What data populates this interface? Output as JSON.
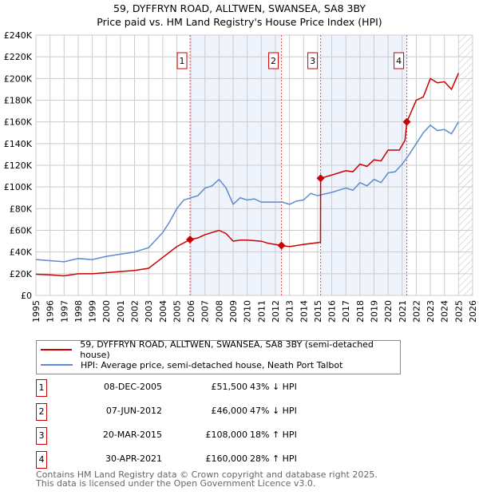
{
  "chart_data": {
    "type": "line",
    "title": "59, DYFFRYN ROAD, ALLTWEN, SWANSEA, SA8 3BY",
    "subtitle": "Price paid vs. HM Land Registry's House Price Index (HPI)",
    "xlim": [
      1995,
      2026
    ],
    "ylim": [
      0,
      240000
    ],
    "x_ticks": [
      "1995",
      "1996",
      "1997",
      "1998",
      "1999",
      "2000",
      "2001",
      "2002",
      "2003",
      "2004",
      "2005",
      "2006",
      "2007",
      "2008",
      "2009",
      "2010",
      "2011",
      "2012",
      "2013",
      "2014",
      "2015",
      "2016",
      "2017",
      "2018",
      "2019",
      "2020",
      "2021",
      "2022",
      "2023",
      "2024",
      "2025",
      "2026"
    ],
    "y_ticks": [
      {
        "v": 0,
        "label": "£0"
      },
      {
        "v": 20000,
        "label": "£20K"
      },
      {
        "v": 40000,
        "label": "£40K"
      },
      {
        "v": 60000,
        "label": "£60K"
      },
      {
        "v": 80000,
        "label": "£80K"
      },
      {
        "v": 100000,
        "label": "£100K"
      },
      {
        "v": 120000,
        "label": "£120K"
      },
      {
        "v": 140000,
        "label": "£140K"
      },
      {
        "v": 160000,
        "label": "£160K"
      },
      {
        "v": 180000,
        "label": "£180K"
      },
      {
        "v": 200000,
        "label": "£200K"
      },
      {
        "v": 220000,
        "label": "£220K"
      },
      {
        "v": 240000,
        "label": "£240K"
      }
    ],
    "grid": true,
    "shaded_ranges": [
      [
        2005.94,
        2012.43
      ],
      [
        2015.21,
        2021.33
      ]
    ],
    "hatched_from": 2025.0,
    "series": [
      {
        "name": "59, DYFFRYN ROAD, ALLTWEN, SWANSEA, SA8 3BY (semi-detached house)",
        "color": "#cc0000",
        "x": [
          1995,
          1996,
          1997,
          1998,
          1999,
          2000,
          2001,
          2002,
          2003,
          2004,
          2005,
          2005.94,
          2006.5,
          2007,
          2008,
          2008.5,
          2009,
          2009.5,
          2010,
          2011,
          2011.5,
          2012.43,
          2013,
          2014,
          2015.2,
          2015.21,
          2016,
          2017,
          2017.5,
          2018,
          2018.5,
          2019,
          2019.5,
          2020,
          2020.8,
          2021.2,
          2021.33,
          2022,
          2022.5,
          2023,
          2023.5,
          2024,
          2024.5,
          2025
        ],
        "y": [
          19500,
          19000,
          18000,
          20000,
          20000,
          21000,
          22000,
          23000,
          25000,
          35000,
          45000,
          51500,
          53000,
          56000,
          60000,
          57000,
          50000,
          51000,
          51000,
          50000,
          48000,
          46000,
          45000,
          47000,
          49000,
          108000,
          111000,
          115000,
          114000,
          121000,
          119000,
          125000,
          124000,
          134000,
          134000,
          143000,
          160000,
          180000,
          183000,
          200000,
          196000,
          197000,
          190000,
          205000
        ]
      },
      {
        "name": "HPI: Average price, semi-detached house, Neath Port Talbot",
        "color": "#5b8ccf",
        "x": [
          1995,
          1996,
          1997,
          1998,
          1999,
          2000,
          2001,
          2002,
          2003,
          2004,
          2004.5,
          2005,
          2005.5,
          2006,
          2006.5,
          2007,
          2007.5,
          2008,
          2008.5,
          2009,
          2009.5,
          2010,
          2010.5,
          2011,
          2011.5,
          2012,
          2012.5,
          2013,
          2013.5,
          2014,
          2014.5,
          2015,
          2016,
          2017,
          2017.5,
          2018,
          2018.5,
          2019,
          2019.5,
          2020,
          2020.5,
          2021,
          2021.5,
          2022,
          2022.5,
          2023,
          2023.5,
          2024,
          2024.5,
          2025
        ],
        "y": [
          33000,
          32000,
          31000,
          34000,
          33000,
          36000,
          38000,
          40000,
          44000,
          58000,
          68000,
          80000,
          88000,
          90000,
          92000,
          99000,
          101000,
          107000,
          99000,
          84000,
          90000,
          88000,
          89000,
          86000,
          86000,
          86000,
          86000,
          84000,
          87000,
          88000,
          94000,
          92000,
          95000,
          99000,
          97000,
          104000,
          101000,
          107000,
          104000,
          113000,
          114000,
          121000,
          130000,
          140000,
          150000,
          157000,
          152000,
          153000,
          149000,
          160000
        ]
      }
    ],
    "legend_placement": "below",
    "markers": [
      {
        "id": "1",
        "x": 2005.94,
        "y": 51500
      },
      {
        "id": "2",
        "x": 2012.43,
        "y": 46000
      },
      {
        "id": "3",
        "x": 2015.21,
        "y": 108000
      },
      {
        "id": "4",
        "x": 2021.33,
        "y": 160000
      }
    ]
  },
  "transactions": [
    {
      "num": "1",
      "date": "08-DEC-2005",
      "price": "£51,500",
      "hpi": "43% ↓ HPI"
    },
    {
      "num": "2",
      "date": "07-JUN-2012",
      "price": "£46,000",
      "hpi": "47% ↓ HPI"
    },
    {
      "num": "3",
      "date": "20-MAR-2015",
      "price": "£108,000",
      "hpi": "18% ↑ HPI"
    },
    {
      "num": "4",
      "date": "30-APR-2021",
      "price": "£160,000",
      "hpi": "28% ↑ HPI"
    }
  ],
  "footer": {
    "line1": "Contains HM Land Registry data © Crown copyright and database right 2025.",
    "line2": "This data is licensed under the Open Government Licence v3.0."
  }
}
